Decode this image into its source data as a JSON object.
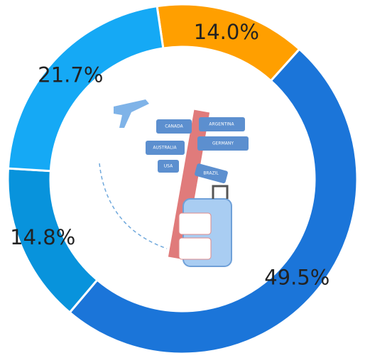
{
  "chart_data": {
    "type": "donut",
    "categories": [
      null,
      null,
      null,
      null
    ],
    "values": [
      14.0,
      49.5,
      14.8,
      21.7
    ],
    "value_labels": [
      "14.0%",
      "49.5%",
      "14.8%",
      "21.7%"
    ],
    "colors": [
      "#ff9f00",
      "#1b75d9",
      "#0893dc",
      "#15a9f5"
    ]
  },
  "illustration": {
    "signs": [
      "CANADA",
      "ARGENTINA",
      "AUSTRALIA",
      "GERMANY",
      "USA",
      "BRAZIL"
    ]
  }
}
